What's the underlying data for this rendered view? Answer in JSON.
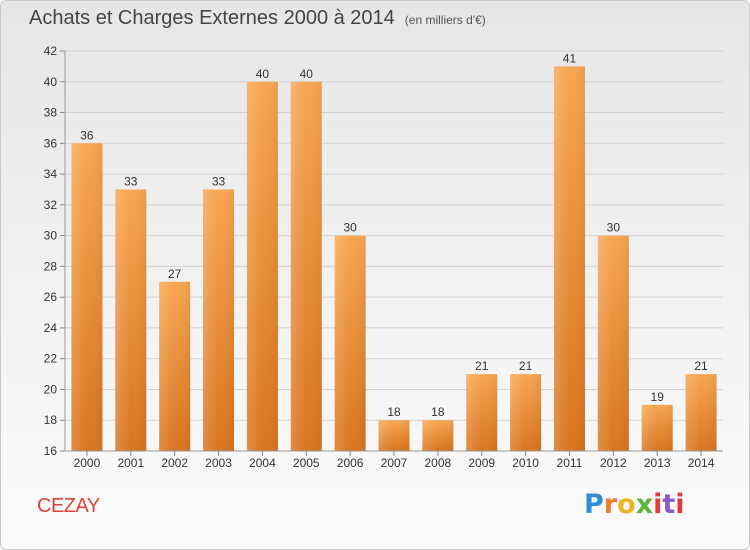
{
  "header": {
    "title": "Achats et Charges Externes 2000 à 2014",
    "unit": "(en milliers d'€)"
  },
  "footer": {
    "town": "CEZAY",
    "logo_text": "Proxiti"
  },
  "colors": {
    "bar_light": "#f7a650",
    "bar_dark": "#d9741f",
    "grid": "#d3d3d3",
    "axis_text": "#333333",
    "town": "#d9453b"
  },
  "chart_data": {
    "type": "bar",
    "title": "Achats et Charges Externes 2000 à 2014",
    "subtitle": "(en milliers d'€)",
    "categories": [
      "2000",
      "2001",
      "2002",
      "2003",
      "2004",
      "2005",
      "2006",
      "2007",
      "2008",
      "2009",
      "2010",
      "2011",
      "2012",
      "2013",
      "2014"
    ],
    "values": [
      36,
      33,
      27,
      33,
      40,
      40,
      30,
      18,
      18,
      21,
      21,
      41,
      30,
      19,
      21
    ],
    "ylim": [
      16,
      42
    ],
    "yticks": [
      16,
      18,
      20,
      22,
      24,
      26,
      28,
      30,
      32,
      34,
      36,
      38,
      40,
      42
    ],
    "grid": true,
    "xlabel": "",
    "ylabel": ""
  }
}
